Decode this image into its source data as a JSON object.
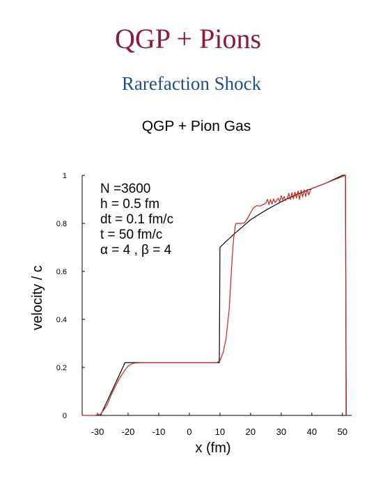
{
  "slide": {
    "title": "QGP + Pions",
    "subtitle": "Rarefaction Shock"
  },
  "colors": {
    "title": "#8B1A3D",
    "subtitle": "#1F4E8A",
    "analytic": "#000000",
    "simulation": "#CC2222"
  },
  "chart_data": {
    "type": "line",
    "title": "QGP + Pion Gas",
    "xlabel": "x (fm)",
    "ylabel": "velocity / c",
    "xlim": [
      -35,
      53
    ],
    "ylim": [
      0,
      1
    ],
    "xticks": [
      -30,
      -20,
      -10,
      0,
      10,
      20,
      30,
      40,
      50
    ],
    "xtick_labels": [
      "-30",
      "-20",
      "-10",
      "0",
      "10",
      "20",
      "30",
      "40",
      "50"
    ],
    "yticks": [
      0,
      0.2,
      0.4,
      0.6,
      0.8,
      1
    ],
    "ytick_labels": [
      "0",
      "0.2",
      "0.4",
      "0.6",
      "0.8",
      "1"
    ],
    "grid": false,
    "annotations": [
      "N =3600",
      "h = 0.5 fm",
      "dt = 0.1 fm/c",
      "t = 50 fm/c",
      "α = 4 ,   β = 4"
    ],
    "series": [
      {
        "color": "#000000",
        "x": [
          -29,
          -21,
          -20,
          9.8,
          10,
          12,
          15,
          20,
          25,
          30,
          35,
          40,
          45,
          50,
          51,
          51.2
        ],
        "y": [
          0,
          0.22,
          0.22,
          0.22,
          0.7,
          0.725,
          0.76,
          0.815,
          0.855,
          0.89,
          0.92,
          0.945,
          0.97,
          1.0,
          1.0,
          0
        ]
      },
      {
        "color": "#CC2222",
        "x": [
          -35,
          -31,
          -29,
          -27,
          -25,
          -23,
          -21,
          -20,
          -19,
          -18,
          -15,
          -10,
          0,
          5,
          9,
          10,
          11,
          12,
          13,
          13.5,
          14,
          14.5,
          15,
          15.3,
          16,
          17,
          18,
          19,
          20,
          21,
          22,
          23,
          24,
          25,
          25.5,
          26,
          26.5,
          27,
          27.5,
          28,
          28.5,
          29,
          29.5,
          30,
          30.5,
          31,
          31.5,
          32,
          32.5,
          33,
          33.5,
          34,
          34.5,
          35,
          35.5,
          36,
          36.5,
          37,
          37.5,
          38,
          38.5,
          39,
          39.5,
          40,
          42,
          45,
          48,
          50,
          51,
          51.1,
          51.3
        ],
        "y": [
          0,
          0,
          0.005,
          0.04,
          0.1,
          0.15,
          0.19,
          0.205,
          0.213,
          0.218,
          0.22,
          0.22,
          0.22,
          0.22,
          0.22,
          0.228,
          0.26,
          0.32,
          0.44,
          0.55,
          0.66,
          0.74,
          0.79,
          0.8,
          0.8,
          0.8,
          0.802,
          0.82,
          0.845,
          0.865,
          0.874,
          0.872,
          0.878,
          0.885,
          0.9,
          0.878,
          0.9,
          0.88,
          0.902,
          0.887,
          0.895,
          0.905,
          0.89,
          0.915,
          0.898,
          0.912,
          0.895,
          0.905,
          0.925,
          0.9,
          0.928,
          0.902,
          0.93,
          0.905,
          0.935,
          0.9,
          0.938,
          0.91,
          0.94,
          0.912,
          0.942,
          0.918,
          0.938,
          0.945,
          0.955,
          0.97,
          0.985,
          0.995,
          1.0,
          0.5,
          0
        ]
      }
    ]
  }
}
